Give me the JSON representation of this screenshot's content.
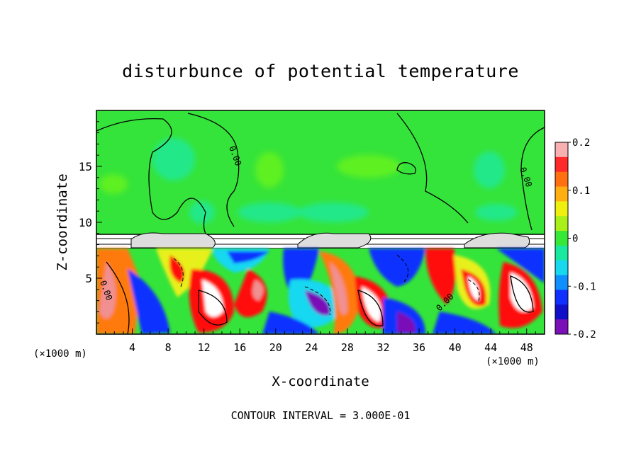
{
  "chart_data": {
    "type": "heatmap",
    "title": "disturbunce of potential temperature",
    "xlabel": "X-coordinate",
    "ylabel": "Z-coordinate",
    "x_unit_label": "(×1000 m)",
    "xlim": [
      0,
      50
    ],
    "ylim": [
      0,
      20
    ],
    "x_ticks": [
      4,
      8,
      12,
      16,
      20,
      24,
      28,
      32,
      36,
      40,
      44,
      48
    ],
    "y_ticks": [
      5,
      10,
      15
    ],
    "colorbar": {
      "range": [
        -0.2,
        0.2
      ],
      "labels": [
        "0.2",
        "0.1",
        "0",
        "-0.1",
        "-0.2"
      ],
      "label_values": [
        0.2,
        0.1,
        0,
        -0.1,
        -0.2
      ]
    },
    "contour_labels": [
      "0.00",
      "0.00",
      "0.00",
      "0.00"
    ],
    "footer": "CONTOUR INTERVAL = 3.000E-01",
    "colors": {
      "upper_field": "#35e43a",
      "upper_dark": "#2bc42f",
      "cyan_patch": "#18e6a8",
      "purple": "#7a10b8",
      "blue": "#1030ff",
      "cyan": "#18d8f0",
      "yellow": "#e8f01a",
      "orange": "#ff7a10",
      "red": "#ff1010",
      "pink": "#f09090"
    }
  }
}
